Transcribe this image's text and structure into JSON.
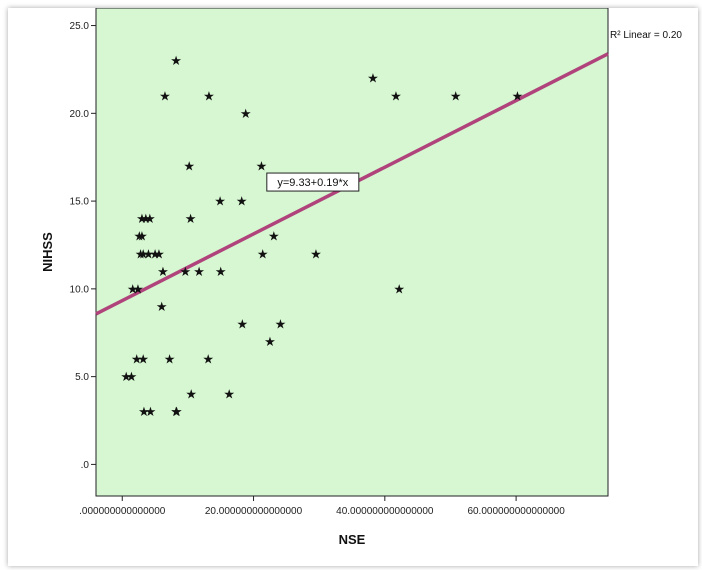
{
  "chart_data": {
    "type": "scatter",
    "xlabel": "NSE",
    "ylabel": "NIHSS",
    "xlim": [
      -4,
      74
    ],
    "ylim": [
      -1.8,
      26
    ],
    "x_ticks": [
      0,
      20,
      40,
      60
    ],
    "x_tick_labels": [
      ".000000000000000",
      "20.000000000000000",
      "40.000000000000000",
      "60.000000000000000"
    ],
    "y_ticks": [
      0,
      5,
      10,
      15,
      20,
      25
    ],
    "y_tick_labels": [
      ".0",
      "5.0",
      "10.0",
      "15.0",
      "20.0",
      "25.0"
    ],
    "grid": false,
    "background_color": "#d6f7d1",
    "marker": "★",
    "fit_line": {
      "intercept": 9.33,
      "slope": 0.19,
      "color": "#b0437b",
      "equation_label": "y=9.33+0.19*x",
      "r2_label": "R² Linear = 0.20"
    },
    "points": [
      [
        0.6,
        5
      ],
      [
        1.4,
        5
      ],
      [
        1.6,
        10
      ],
      [
        2.4,
        10
      ],
      [
        2.2,
        6
      ],
      [
        3.2,
        6
      ],
      [
        3.0,
        14
      ],
      [
        3.6,
        14
      ],
      [
        4.2,
        14
      ],
      [
        2.6,
        13
      ],
      [
        3.0,
        13
      ],
      [
        2.8,
        12
      ],
      [
        3.2,
        12
      ],
      [
        4.0,
        12
      ],
      [
        5.0,
        12
      ],
      [
        5.6,
        12
      ],
      [
        3.3,
        3
      ],
      [
        4.3,
        3
      ],
      [
        6.2,
        11
      ],
      [
        6.0,
        9
      ],
      [
        6.5,
        21
      ],
      [
        7.2,
        6
      ],
      [
        8.2,
        23
      ],
      [
        8.2,
        3
      ],
      [
        8.3,
        3
      ],
      [
        9.6,
        11
      ],
      [
        10.2,
        17
      ],
      [
        10.4,
        14
      ],
      [
        10.5,
        4
      ],
      [
        11.7,
        11
      ],
      [
        13.1,
        6
      ],
      [
        13.2,
        21
      ],
      [
        14.9,
        15
      ],
      [
        15.0,
        11
      ],
      [
        16.3,
        4
      ],
      [
        18.2,
        15
      ],
      [
        18.3,
        8
      ],
      [
        18.8,
        20
      ],
      [
        21.2,
        17
      ],
      [
        21.4,
        12
      ],
      [
        22.5,
        7
      ],
      [
        23.1,
        13
      ],
      [
        24.1,
        8
      ],
      [
        24.5,
        16
      ],
      [
        29.5,
        12
      ],
      [
        38.2,
        22
      ],
      [
        41.7,
        21
      ],
      [
        42.2,
        10
      ],
      [
        50.8,
        21
      ],
      [
        60.2,
        21
      ]
    ]
  }
}
